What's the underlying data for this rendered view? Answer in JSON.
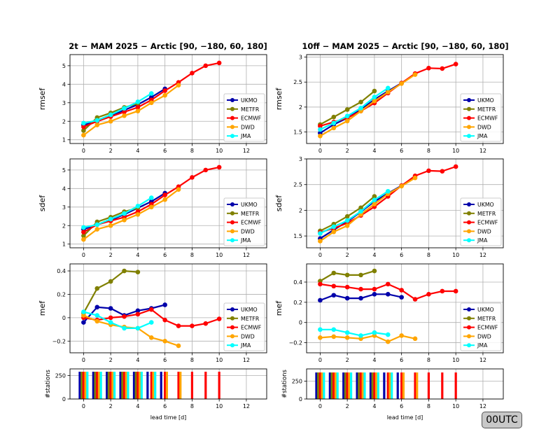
{
  "titles": {
    "left": "2t − MAM 2025 − Arctic [90, −180, 60, 180]",
    "right": "10ff − MAM 2025 − Arctic [90, −180, 60, 180]"
  },
  "badge": "00UTC",
  "colors": {
    "UKMO": "#0000aa",
    "METFR": "#808000",
    "ECMWF": "#ff0000",
    "DWD": "#ffa500",
    "JMA": "#00ffff"
  },
  "chart_data": [
    {
      "type": "line",
      "panel": "2t-rmsef",
      "ylabel": "rmsef",
      "xlim": [
        -1,
        13.5
      ],
      "ylim": [
        0.8,
        5.6
      ],
      "xticks": [
        0,
        2,
        4,
        6,
        8,
        10,
        12
      ],
      "yticks": [
        1,
        2,
        3,
        4,
        5
      ],
      "grid": true,
      "legend": "lower-right",
      "series": [
        {
          "name": "UKMO",
          "x": [
            0,
            1,
            2,
            3,
            4,
            5,
            6
          ],
          "values": [
            1.8,
            2.0,
            2.3,
            2.6,
            2.9,
            3.3,
            3.75
          ]
        },
        {
          "name": "METFR",
          "x": [
            0,
            1,
            2,
            3,
            4
          ],
          "values": [
            1.5,
            2.2,
            2.45,
            2.75,
            2.95
          ]
        },
        {
          "name": "ECMWF",
          "x": [
            0,
            1,
            2,
            3,
            4,
            5,
            6,
            7,
            8,
            9,
            10
          ],
          "values": [
            1.7,
            2.0,
            2.25,
            2.5,
            2.75,
            3.15,
            3.65,
            4.1,
            4.6,
            5.0,
            5.15
          ]
        },
        {
          "name": "DWD",
          "x": [
            0,
            1,
            2,
            3,
            4,
            5,
            6,
            7
          ],
          "values": [
            1.25,
            1.8,
            2.0,
            2.3,
            2.55,
            3.0,
            3.4,
            3.95
          ]
        },
        {
          "name": "JMA",
          "x": [
            0,
            1,
            2,
            3,
            4,
            5
          ],
          "values": [
            1.9,
            2.05,
            2.35,
            2.7,
            3.05,
            3.5
          ]
        }
      ]
    },
    {
      "type": "line",
      "panel": "10ff-rmsef",
      "ylabel": "rmsef",
      "xlim": [
        -1,
        13.5
      ],
      "ylim": [
        1.27,
        3.05
      ],
      "xticks": [
        0,
        2,
        4,
        6,
        8,
        10,
        12
      ],
      "yticks": [
        1.5,
        2.0,
        2.5,
        3.0
      ],
      "grid": true,
      "legend": "lower-right",
      "series": [
        {
          "name": "UKMO",
          "x": [
            0,
            1,
            2,
            3,
            4,
            5,
            6
          ],
          "values": [
            1.48,
            1.65,
            1.78,
            1.95,
            2.15,
            2.32,
            2.48
          ]
        },
        {
          "name": "METFR",
          "x": [
            0,
            1,
            2,
            3,
            4
          ],
          "values": [
            1.65,
            1.8,
            1.95,
            2.1,
            2.32
          ]
        },
        {
          "name": "ECMWF",
          "x": [
            0,
            1,
            2,
            3,
            4,
            5,
            6,
            7,
            8,
            9,
            10
          ],
          "values": [
            1.62,
            1.7,
            1.78,
            1.92,
            2.08,
            2.28,
            2.48,
            2.67,
            2.78,
            2.77,
            2.86
          ]
        },
        {
          "name": "DWD",
          "x": [
            0,
            1,
            2,
            3,
            4,
            5,
            6,
            7
          ],
          "values": [
            1.42,
            1.58,
            1.72,
            1.92,
            2.12,
            2.3,
            2.47,
            2.65
          ]
        },
        {
          "name": "JMA",
          "x": [
            0,
            1,
            2,
            3,
            4,
            5
          ],
          "values": [
            1.55,
            1.68,
            1.82,
            1.98,
            2.2,
            2.38
          ]
        }
      ]
    },
    {
      "type": "line",
      "panel": "2t-sdef",
      "ylabel": "sdef",
      "xlim": [
        -1,
        13.5
      ],
      "ylim": [
        0.8,
        5.6
      ],
      "xticks": [
        0,
        2,
        4,
        6,
        8,
        10,
        12
      ],
      "yticks": [
        1,
        2,
        3,
        4,
        5
      ],
      "grid": true,
      "legend": "lower-right",
      "series": [
        {
          "name": "UKMO",
          "x": [
            0,
            1,
            2,
            3,
            4,
            5,
            6
          ],
          "values": [
            1.8,
            2.05,
            2.3,
            2.6,
            2.95,
            3.3,
            3.75
          ]
        },
        {
          "name": "METFR",
          "x": [
            0,
            1,
            2,
            3,
            4
          ],
          "values": [
            1.45,
            2.2,
            2.45,
            2.75,
            2.95
          ]
        },
        {
          "name": "ECMWF",
          "x": [
            0,
            1,
            2,
            3,
            4,
            5,
            6,
            7,
            8,
            9,
            10
          ],
          "values": [
            1.65,
            2.05,
            2.25,
            2.45,
            2.75,
            3.15,
            3.65,
            4.1,
            4.6,
            5.0,
            5.15
          ]
        },
        {
          "name": "DWD",
          "x": [
            0,
            1,
            2,
            3,
            4,
            5,
            6,
            7
          ],
          "values": [
            1.25,
            1.8,
            2.0,
            2.3,
            2.6,
            3.0,
            3.4,
            3.95
          ]
        },
        {
          "name": "JMA",
          "x": [
            0,
            1,
            2,
            3,
            4,
            5
          ],
          "values": [
            1.9,
            2.05,
            2.35,
            2.65,
            3.05,
            3.5
          ]
        }
      ]
    },
    {
      "type": "line",
      "panel": "10ff-sdef",
      "ylabel": "sdef",
      "xlim": [
        -1,
        13.5
      ],
      "ylim": [
        1.27,
        3.0
      ],
      "xticks": [
        0,
        2,
        4,
        6,
        8,
        10,
        12
      ],
      "yticks": [
        1.5,
        2.0,
        2.5,
        3.0
      ],
      "grid": true,
      "legend": "lower-right",
      "series": [
        {
          "name": "UKMO",
          "x": [
            0,
            1,
            2,
            3,
            4,
            5,
            6
          ],
          "values": [
            1.45,
            1.62,
            1.78,
            1.97,
            2.17,
            2.33,
            2.48
          ]
        },
        {
          "name": "METFR",
          "x": [
            0,
            1,
            2,
            3,
            4
          ],
          "values": [
            1.6,
            1.73,
            1.88,
            2.05,
            2.27
          ]
        },
        {
          "name": "ECMWF",
          "x": [
            0,
            1,
            2,
            3,
            4,
            5,
            6,
            7,
            8,
            9,
            10
          ],
          "values": [
            1.57,
            1.65,
            1.75,
            1.9,
            2.07,
            2.27,
            2.48,
            2.67,
            2.77,
            2.76,
            2.85
          ]
        },
        {
          "name": "DWD",
          "x": [
            0,
            1,
            2,
            3,
            4,
            5,
            6,
            7
          ],
          "values": [
            1.4,
            1.58,
            1.7,
            1.92,
            2.12,
            2.32,
            2.47,
            2.63
          ]
        },
        {
          "name": "JMA",
          "x": [
            0,
            1,
            2,
            3,
            4,
            5
          ],
          "values": [
            1.55,
            1.68,
            1.8,
            1.98,
            2.2,
            2.37
          ]
        }
      ]
    },
    {
      "type": "line",
      "panel": "2t-mef",
      "ylabel": "mef",
      "xlim": [
        -1,
        13.5
      ],
      "ylim": [
        -0.3,
        0.46
      ],
      "xticks": [
        0,
        2,
        4,
        6,
        8,
        10,
        12
      ],
      "yticks": [
        -0.2,
        0.0,
        0.2,
        0.4
      ],
      "grid": true,
      "legend": "lower-right",
      "series": [
        {
          "name": "UKMO",
          "x": [
            0,
            1,
            2,
            3,
            4,
            5,
            6
          ],
          "values": [
            -0.04,
            0.09,
            0.08,
            0.02,
            0.06,
            0.08,
            0.11
          ]
        },
        {
          "name": "METFR",
          "x": [
            0,
            1,
            2,
            3,
            4
          ],
          "values": [
            0.04,
            0.25,
            0.31,
            0.4,
            0.39
          ]
        },
        {
          "name": "ECMWF",
          "x": [
            0,
            1,
            2,
            3,
            4,
            5,
            6,
            7,
            8,
            9,
            10
          ],
          "values": [
            0.0,
            -0.02,
            0.0,
            0.01,
            0.03,
            0.07,
            -0.02,
            -0.07,
            -0.07,
            -0.05,
            -0.01
          ]
        },
        {
          "name": "DWD",
          "x": [
            0,
            1,
            2,
            3,
            4,
            5,
            6,
            7
          ],
          "values": [
            0.02,
            -0.03,
            -0.06,
            -0.08,
            -0.09,
            -0.17,
            -0.2,
            -0.24
          ]
        },
        {
          "name": "JMA",
          "x": [
            0,
            1,
            2,
            3,
            4,
            5
          ],
          "values": [
            0.05,
            0.02,
            -0.04,
            -0.09,
            -0.09,
            -0.04
          ]
        }
      ]
    },
    {
      "type": "line",
      "panel": "10ff-mef",
      "ylabel": "mef",
      "xlim": [
        -1,
        13.5
      ],
      "ylim": [
        -0.3,
        0.58
      ],
      "xticks": [
        0,
        2,
        4,
        6,
        8,
        10,
        12
      ],
      "yticks": [
        -0.2,
        0.0,
        0.2,
        0.4
      ],
      "grid": true,
      "legend": "lower-right",
      "series": [
        {
          "name": "UKMO",
          "x": [
            0,
            1,
            2,
            3,
            4,
            5,
            6
          ],
          "values": [
            0.22,
            0.27,
            0.24,
            0.24,
            0.28,
            0.28,
            0.25
          ]
        },
        {
          "name": "METFR",
          "x": [
            0,
            1,
            2,
            3,
            4
          ],
          "values": [
            0.41,
            0.49,
            0.47,
            0.47,
            0.51
          ]
        },
        {
          "name": "ECMWF",
          "x": [
            0,
            1,
            2,
            3,
            4,
            5,
            6,
            7,
            8,
            9,
            10
          ],
          "values": [
            0.38,
            0.36,
            0.35,
            0.33,
            0.33,
            0.38,
            0.32,
            0.23,
            0.28,
            0.31,
            0.31
          ]
        },
        {
          "name": "DWD",
          "x": [
            0,
            1,
            2,
            3,
            4,
            5,
            6,
            7
          ],
          "values": [
            -0.15,
            -0.14,
            -0.15,
            -0.16,
            -0.13,
            -0.19,
            -0.13,
            -0.16
          ]
        },
        {
          "name": "JMA",
          "x": [
            0,
            1,
            2,
            3,
            4,
            5
          ],
          "values": [
            -0.07,
            -0.07,
            -0.1,
            -0.13,
            -0.1,
            -0.12
          ]
        }
      ]
    },
    {
      "type": "bar",
      "panel": "2t-stations",
      "ylabel": "#stations",
      "xlabel": "lead time [d]",
      "xlim": [
        -1,
        13.5
      ],
      "ylim": [
        0,
        320
      ],
      "xticks": [
        0,
        2,
        4,
        6,
        8,
        10,
        12
      ],
      "yticks": [
        0,
        250
      ],
      "grid": true,
      "series": [
        {
          "name": "UKMO",
          "x": [
            0,
            1,
            2,
            3,
            4,
            5,
            6
          ],
          "values": [
            290,
            290,
            290,
            290,
            290,
            290,
            290
          ]
        },
        {
          "name": "METFR",
          "x": [
            0,
            1,
            2,
            3,
            4
          ],
          "values": [
            290,
            290,
            290,
            290,
            290
          ]
        },
        {
          "name": "ECMWF",
          "x": [
            0,
            1,
            2,
            3,
            4,
            5,
            6,
            7,
            8,
            9,
            10
          ],
          "values": [
            290,
            290,
            290,
            290,
            290,
            290,
            290,
            290,
            290,
            290,
            290
          ]
        },
        {
          "name": "DWD",
          "x": [
            0,
            1,
            2,
            3,
            4,
            5,
            6,
            7
          ],
          "values": [
            290,
            290,
            290,
            290,
            290,
            290,
            290,
            290
          ]
        },
        {
          "name": "JMA",
          "x": [
            0,
            1,
            2,
            3,
            4,
            5
          ],
          "values": [
            290,
            290,
            290,
            290,
            290,
            290
          ]
        }
      ]
    },
    {
      "type": "bar",
      "panel": "10ff-stations",
      "ylabel": "#stations",
      "xlabel": "lead time [d]",
      "xlim": [
        -1,
        13.5
      ],
      "ylim": [
        0,
        420
      ],
      "xticks": [
        0,
        2,
        4,
        6,
        8,
        10,
        12
      ],
      "yticks": [
        0,
        250
      ],
      "grid": true,
      "series": [
        {
          "name": "UKMO",
          "x": [
            0,
            1,
            2,
            3,
            4,
            5,
            6
          ],
          "values": [
            370,
            370,
            370,
            370,
            370,
            370,
            370
          ]
        },
        {
          "name": "METFR",
          "x": [
            0,
            1,
            2,
            3,
            4
          ],
          "values": [
            370,
            370,
            370,
            370,
            370
          ]
        },
        {
          "name": "ECMWF",
          "x": [
            0,
            1,
            2,
            3,
            4,
            5,
            6,
            7,
            8,
            9,
            10
          ],
          "values": [
            370,
            370,
            370,
            370,
            370,
            370,
            370,
            370,
            370,
            370,
            370
          ]
        },
        {
          "name": "DWD",
          "x": [
            0,
            1,
            2,
            3,
            4,
            5,
            6,
            7
          ],
          "values": [
            370,
            370,
            370,
            370,
            370,
            370,
            370,
            370
          ]
        },
        {
          "name": "JMA",
          "x": [
            0,
            1,
            2,
            3,
            4,
            5
          ],
          "values": [
            370,
            370,
            370,
            370,
            370,
            370
          ]
        }
      ]
    }
  ]
}
